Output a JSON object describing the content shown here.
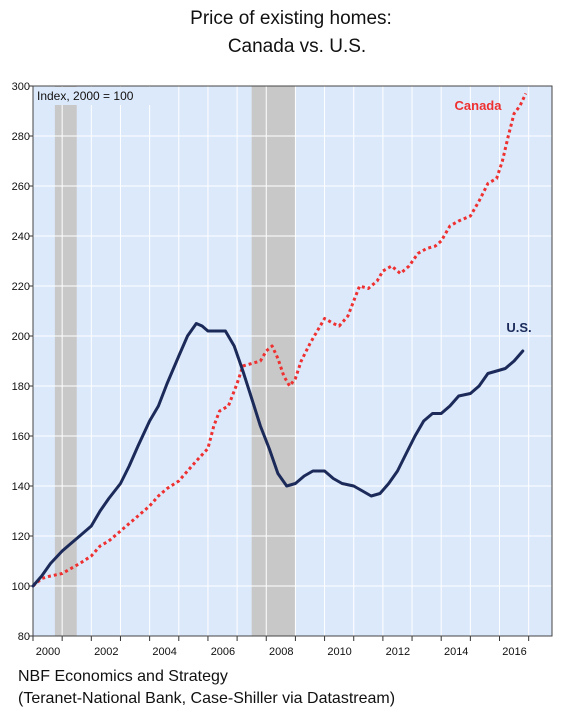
{
  "chart_data": {
    "type": "line",
    "title_line1": "Price of existing homes:",
    "title_line2": "Canada vs. U.S.",
    "note": "Index, 2000 = 100",
    "xlim": [
      2000,
      2017.8
    ],
    "ylim": [
      80,
      300
    ],
    "y_ticks": [
      80,
      100,
      120,
      140,
      160,
      180,
      200,
      220,
      240,
      260,
      280,
      300
    ],
    "x_ticks": [
      2000,
      2002,
      2004,
      2006,
      2008,
      2010,
      2012,
      2014,
      2016
    ],
    "recessions": [
      [
        2000.75,
        2001.5
      ],
      [
        2007.5,
        2009.0
      ]
    ],
    "grid": true,
    "series": [
      {
        "name": "Canada",
        "color": "#ee3030",
        "style": "dotted",
        "points": [
          [
            2000.0,
            100
          ],
          [
            2000.3,
            103
          ],
          [
            2000.6,
            104
          ],
          [
            2001.0,
            105
          ],
          [
            2001.3,
            107
          ],
          [
            2001.6,
            109
          ],
          [
            2002.0,
            112
          ],
          [
            2002.3,
            116
          ],
          [
            2002.6,
            118
          ],
          [
            2003.0,
            122
          ],
          [
            2003.3,
            125
          ],
          [
            2003.6,
            128
          ],
          [
            2004.0,
            132
          ],
          [
            2004.3,
            136
          ],
          [
            2004.6,
            139
          ],
          [
            2005.0,
            142
          ],
          [
            2005.3,
            146
          ],
          [
            2005.6,
            150
          ],
          [
            2006.0,
            155
          ],
          [
            2006.2,
            164
          ],
          [
            2006.4,
            170
          ],
          [
            2006.7,
            172
          ],
          [
            2007.0,
            181
          ],
          [
            2007.2,
            188
          ],
          [
            2007.5,
            189
          ],
          [
            2007.8,
            190
          ],
          [
            2008.0,
            194
          ],
          [
            2008.2,
            196
          ],
          [
            2008.4,
            191
          ],
          [
            2008.6,
            184
          ],
          [
            2008.8,
            180
          ],
          [
            2009.0,
            183
          ],
          [
            2009.2,
            190
          ],
          [
            2009.5,
            197
          ],
          [
            2009.8,
            203
          ],
          [
            2010.0,
            207
          ],
          [
            2010.3,
            205
          ],
          [
            2010.5,
            204
          ],
          [
            2010.8,
            208
          ],
          [
            2011.0,
            214
          ],
          [
            2011.2,
            220
          ],
          [
            2011.5,
            219
          ],
          [
            2011.8,
            222
          ],
          [
            2012.0,
            226
          ],
          [
            2012.3,
            228
          ],
          [
            2012.6,
            225
          ],
          [
            2012.9,
            228
          ],
          [
            2013.2,
            233
          ],
          [
            2013.5,
            235
          ],
          [
            2013.8,
            236
          ],
          [
            2014.0,
            238
          ],
          [
            2014.3,
            244
          ],
          [
            2014.6,
            246
          ],
          [
            2015.0,
            248
          ],
          [
            2015.3,
            254
          ],
          [
            2015.6,
            261
          ],
          [
            2015.9,
            263
          ],
          [
            2016.1,
            270
          ],
          [
            2016.3,
            280
          ],
          [
            2016.5,
            289
          ],
          [
            2016.7,
            292
          ],
          [
            2016.9,
            297
          ]
        ]
      },
      {
        "name": "U.S.",
        "color": "#1c2a5a",
        "style": "solid",
        "points": [
          [
            2000.0,
            100
          ],
          [
            2000.3,
            104
          ],
          [
            2000.6,
            109
          ],
          [
            2001.0,
            114
          ],
          [
            2001.3,
            117
          ],
          [
            2001.6,
            120
          ],
          [
            2002.0,
            124
          ],
          [
            2002.3,
            130
          ],
          [
            2002.6,
            135
          ],
          [
            2003.0,
            141
          ],
          [
            2003.3,
            148
          ],
          [
            2003.6,
            156
          ],
          [
            2004.0,
            166
          ],
          [
            2004.3,
            172
          ],
          [
            2004.6,
            181
          ],
          [
            2005.0,
            192
          ],
          [
            2005.3,
            200
          ],
          [
            2005.6,
            205
          ],
          [
            2005.8,
            204
          ],
          [
            2006.0,
            202
          ],
          [
            2006.3,
            202
          ],
          [
            2006.6,
            202
          ],
          [
            2006.9,
            196
          ],
          [
            2007.2,
            186
          ],
          [
            2007.5,
            175
          ],
          [
            2007.8,
            164
          ],
          [
            2008.1,
            155
          ],
          [
            2008.4,
            145
          ],
          [
            2008.7,
            140
          ],
          [
            2009.0,
            141
          ],
          [
            2009.3,
            144
          ],
          [
            2009.6,
            146
          ],
          [
            2010.0,
            146
          ],
          [
            2010.3,
            143
          ],
          [
            2010.6,
            141
          ],
          [
            2011.0,
            140
          ],
          [
            2011.3,
            138
          ],
          [
            2011.6,
            136
          ],
          [
            2011.9,
            137
          ],
          [
            2012.2,
            141
          ],
          [
            2012.5,
            146
          ],
          [
            2012.8,
            153
          ],
          [
            2013.1,
            160
          ],
          [
            2013.4,
            166
          ],
          [
            2013.7,
            169
          ],
          [
            2014.0,
            169
          ],
          [
            2014.3,
            172
          ],
          [
            2014.6,
            176
          ],
          [
            2015.0,
            177
          ],
          [
            2015.3,
            180
          ],
          [
            2015.6,
            185
          ],
          [
            2015.9,
            186
          ],
          [
            2016.2,
            187
          ],
          [
            2016.5,
            190
          ],
          [
            2016.8,
            194
          ]
        ]
      }
    ]
  },
  "source_line1": "NBF Economics and Strategy",
  "source_line2": "(Teranet-National Bank, Case-Shiller via Datastream)"
}
